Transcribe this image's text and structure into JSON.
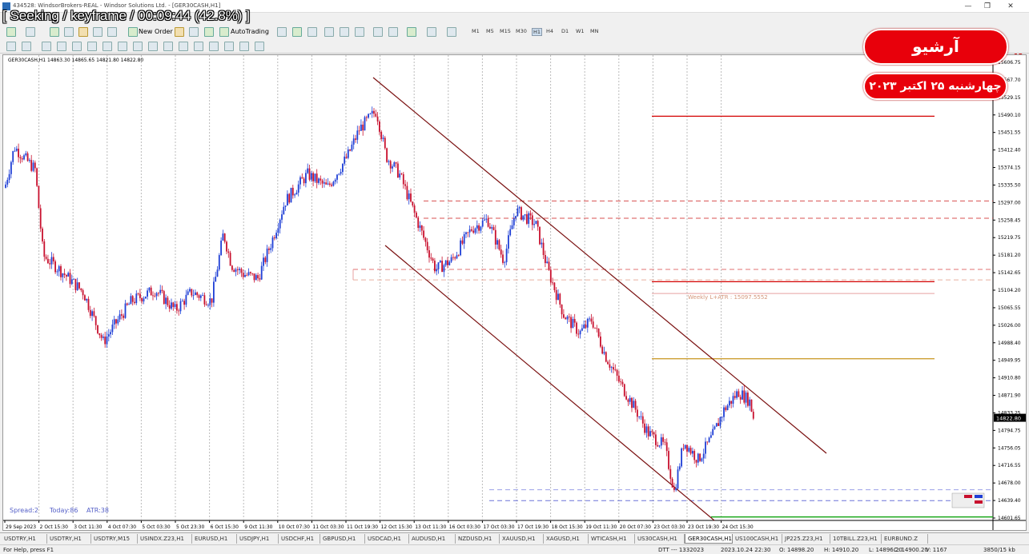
{
  "window": {
    "title": "434528: WindsorBrokers-REAL - Windsor Solutions Ltd. - [GER30CASH,H1]",
    "controls": [
      "—",
      "❐",
      "✕"
    ]
  },
  "overlay_seek": "[ Seeking / keyframe / 00:09:44 (42.8%) ]",
  "badges": {
    "archive": "آرشیو",
    "date": "چهارشنبه ۲۵ اکتبر ۲۰۲۳"
  },
  "toolbar": {
    "new_order": "New Order",
    "auto_trading": "AutoTrading",
    "timeframes": [
      "M1",
      "M5",
      "M15",
      "M30",
      "H1",
      "H4",
      "D1",
      "W1",
      "MN"
    ],
    "active_timeframe": "H1",
    "alert_count": "1"
  },
  "chart": {
    "header": "GER30CASH,H1  14863.30 14865.65 14821.80 14822.80",
    "current_price": "14822.80",
    "price_axis": [
      "15606.75",
      "15567.70",
      "15529.15",
      "15490.10",
      "15451.55",
      "15412.40",
      "15374.15",
      "15335.50",
      "15297.00",
      "15258.45",
      "15219.75",
      "15181.20",
      "15142.65",
      "15104.20",
      "15065.55",
      "15026.00",
      "14988.40",
      "14949.95",
      "14910.80",
      "14871.90",
      "14833.25",
      "14794.75",
      "14756.05",
      "14716.55",
      "14678.00",
      "14639.40",
      "14601.65"
    ],
    "time_axis": [
      "29 Sep 2023",
      "2 Oct 15:30",
      "3 Oct 11:30",
      "4 Oct 07:30",
      "5 Oct 03:30",
      "5 Oct 23:30",
      "6 Oct 15:30",
      "9 Oct 11:30",
      "10 Oct 07:30",
      "11 Oct 03:30",
      "11 Oct 19:30",
      "12 Oct 15:30",
      "13 Oct 11:30",
      "16 Oct 03:30",
      "17 Oct 03:30",
      "17 Oct 19:30",
      "18 Oct 15:30",
      "19 Oct 11:30",
      "20 Oct 07:30",
      "23 Oct 03:30",
      "23 Oct 19:30",
      "24 Oct 15:30"
    ],
    "weekly_label": "Weekly L+ATR : 15097.5552",
    "info_spread": "Spread:2",
    "info_today": "Today:86",
    "info_atr": "ATR:38",
    "colors": {
      "bull": "#1f3fd6",
      "bear": "#c8102e",
      "channel": "#7a1010",
      "red_level": "#d40000",
      "gold_level": "#c8951e",
      "green_level": "#1aa81a"
    }
  },
  "tabs": [
    "USDTRY,H1",
    "USDTRY,H1",
    "USDTRY,M15",
    "USINDX.Z23,H1",
    "EURUSD,H1",
    "USDJPY,H1",
    "USDCHF,H1",
    "GBPUSD,H1",
    "USDCAD,H1",
    "AUDUSD,H1",
    "NZDUSD,H1",
    "XAUUSD,H1",
    "XAGUSD,H1",
    "WTICASH,H1",
    "US30CASH,H1",
    "GER30CASH,H1",
    "US100CASH,H1",
    "JP225.Z23,H1",
    "10TBILL.Z23,H1",
    "EURBUND.Z"
  ],
  "active_tab": "GER30CASH,H1",
  "status": {
    "help": "For Help, press F1",
    "profile": "Default",
    "dtt": "DTT --- 1332023",
    "ohlc_time": "2023.10.24 22:30",
    "open": "O: 14898.20",
    "high": "H: 14910.20",
    "low": "L: 14896.20",
    "close": "C: 14900.20",
    "volume": "V: 1167",
    "traffic": "3850/15 kb"
  }
}
